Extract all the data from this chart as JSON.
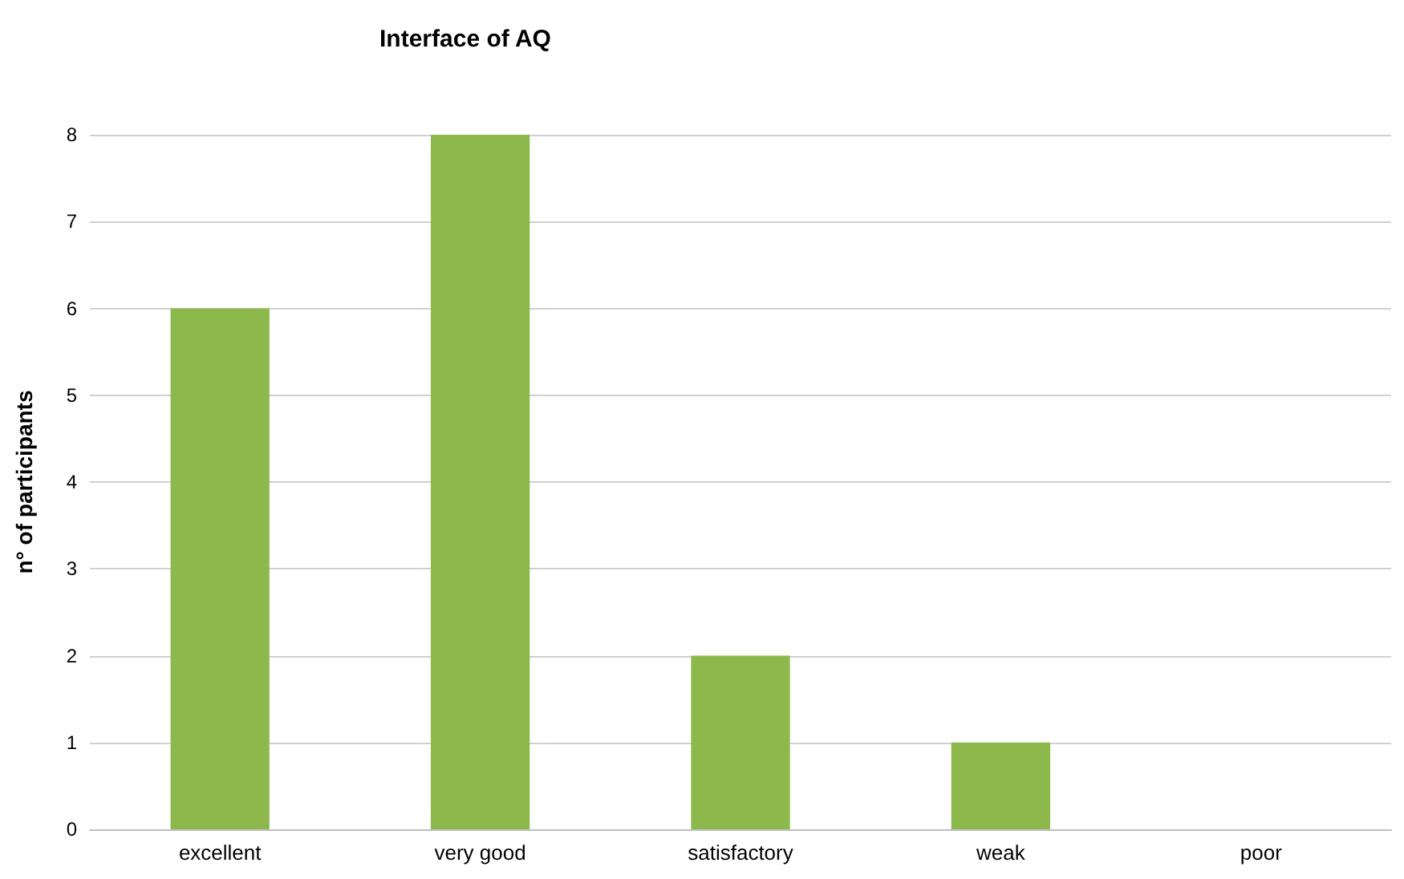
{
  "chart_data": {
    "type": "bar",
    "title": "Interface of AQ",
    "ylabel": "n° of participants",
    "categories": [
      "excellent",
      "very good",
      "satisfactory",
      "weak",
      "poor"
    ],
    "values": [
      6,
      8,
      2,
      1,
      0
    ],
    "color": "#8cb84c",
    "ylim": [
      0,
      8
    ],
    "yticks": [
      0,
      1,
      2,
      3,
      4,
      5,
      6,
      7,
      8
    ],
    "grid": "y"
  }
}
